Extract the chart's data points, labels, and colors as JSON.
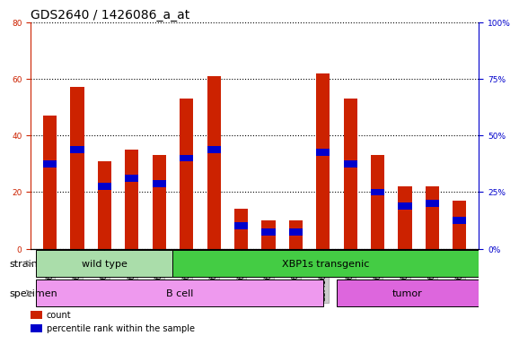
{
  "title": "GDS2640 / 1426086_a_at",
  "samples": [
    "GSM160730",
    "GSM160731",
    "GSM160739",
    "GSM160860",
    "GSM160861",
    "GSM160864",
    "GSM160865",
    "GSM160866",
    "GSM160867",
    "GSM160868",
    "GSM160869",
    "GSM160880",
    "GSM160881",
    "GSM160882",
    "GSM160883",
    "GSM160884"
  ],
  "count_values": [
    47,
    57,
    31,
    35,
    33,
    53,
    61,
    14,
    10,
    10,
    62,
    53,
    33,
    22,
    22,
    17
  ],
  "percentile_values": [
    30,
    35,
    22,
    25,
    23,
    32,
    35,
    8,
    6,
    6,
    34,
    30,
    20,
    15,
    16,
    10
  ],
  "strain_groups": [
    {
      "label": "wild type",
      "start": 0,
      "end": 4,
      "color": "#aaddaa"
    },
    {
      "label": "XBP1s transgenic",
      "start": 5,
      "end": 15,
      "color": "#44cc44"
    }
  ],
  "specimen_groups": [
    {
      "label": "B cell",
      "start": 0,
      "end": 10,
      "color": "#ee99ee"
    },
    {
      "label": "tumor",
      "start": 11,
      "end": 15,
      "color": "#dd66dd"
    }
  ],
  "ylim_left": [
    0,
    80
  ],
  "ylim_right": [
    0,
    100
  ],
  "yticks_left": [
    0,
    20,
    40,
    60,
    80
  ],
  "yticks_right": [
    0,
    25,
    50,
    75,
    100
  ],
  "ytick_labels_right": [
    "0%",
    "25%",
    "50%",
    "75%",
    "100%"
  ],
  "bar_color_count": "#cc2200",
  "bar_color_percentile": "#0000cc",
  "bar_width": 0.5,
  "plot_bg_color": "#ffffff",
  "grid_color": "#000000",
  "title_fontsize": 10,
  "tick_fontsize": 6.5,
  "label_fontsize": 8
}
